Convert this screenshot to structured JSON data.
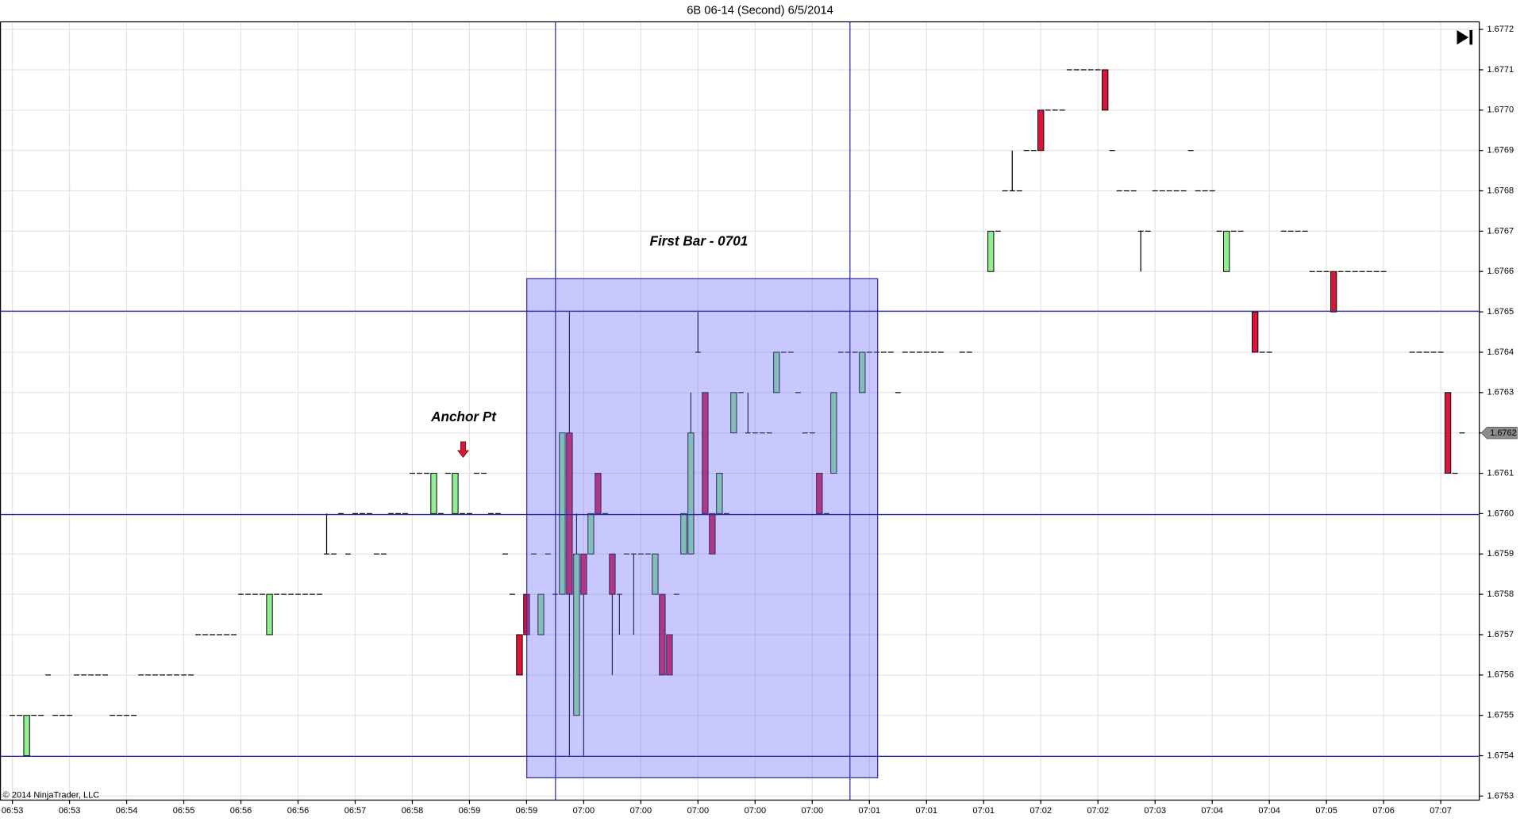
{
  "chart_data": {
    "type": "candlestick",
    "title": "6B 06-14 (Second)  6/5/2014",
    "copyright": "© 2014 NinjaTrader, LLC",
    "annotations": [
      "Anchor Pt",
      "First Bar - 0701"
    ],
    "last_price": 1.6762,
    "up_color": "#90ee90",
    "down_color": "#dc143c",
    "grid": true,
    "ylim": [
      1.67529,
      1.67722
    ],
    "yticks": [
      1.6753,
      1.6754,
      1.6755,
      1.6756,
      1.6757,
      1.6758,
      1.6759,
      {
        "value": 1.676,
        "label": "1.6760"
      },
      1.6761,
      1.6762,
      1.6763,
      1.6764,
      1.6765,
      1.6766,
      1.6767,
      1.6768,
      1.6769,
      {
        "value": 1.677,
        "label": "1.6770"
      },
      1.6771,
      1.6772
    ],
    "xlim": [
      -1.6,
      205.4
    ],
    "xticks": [
      {
        "value": 0,
        "label": "06:53"
      },
      {
        "value": 8,
        "label": "06:53"
      },
      {
        "value": 16,
        "label": "06:54"
      },
      {
        "value": 24,
        "label": "06:55"
      },
      {
        "value": 32,
        "label": "06:56"
      },
      {
        "value": 40,
        "label": "06:56"
      },
      {
        "value": 48,
        "label": "06:57"
      },
      {
        "value": 56,
        "label": "06:58"
      },
      {
        "value": 64,
        "label": "06:59"
      },
      {
        "value": 72,
        "label": "06:59"
      },
      {
        "value": 80,
        "label": "07:00"
      },
      {
        "value": 88,
        "label": "07:00"
      },
      {
        "value": 96,
        "label": "07:00"
      },
      {
        "value": 104,
        "label": "07:00"
      },
      {
        "value": 112,
        "label": "07:00"
      },
      {
        "value": 120,
        "label": "07:01"
      },
      {
        "value": 128,
        "label": "07:01"
      },
      {
        "value": 136,
        "label": "07:01"
      },
      {
        "value": 144,
        "label": "07:02"
      },
      {
        "value": 152,
        "label": "07:02"
      },
      {
        "value": 160,
        "label": "07:03"
      },
      {
        "value": 168,
        "label": "07:04"
      },
      {
        "value": 176,
        "label": "07:04"
      },
      {
        "value": 184,
        "label": "07:05"
      },
      {
        "value": 192,
        "label": "07:06"
      },
      {
        "value": 200,
        "label": "07:07"
      }
    ],
    "candles": [
      [
        1.6755,
        1.6755,
        1.6755,
        1.6755
      ],
      [
        1.6755,
        1.6755,
        1.6755,
        1.6755
      ],
      [
        1.6754,
        1.6755,
        1.6754,
        1.6755
      ],
      [
        1.6755,
        1.6755,
        1.6755,
        1.6755
      ],
      [
        1.6755,
        1.6755,
        1.6755,
        1.6755
      ],
      [
        1.6756,
        1.6756,
        1.6756,
        1.6756
      ],
      [
        1.6755,
        1.6755,
        1.6755,
        1.6755
      ],
      [
        1.6755,
        1.6755,
        1.6755,
        1.6755
      ],
      [
        1.6755,
        1.6755,
        1.6755,
        1.6755
      ],
      [
        1.6756,
        1.6756,
        1.6756,
        1.6756
      ],
      [
        1.6756,
        1.6756,
        1.6756,
        1.6756
      ],
      [
        1.6756,
        1.6756,
        1.6756,
        1.6756
      ],
      [
        1.6756,
        1.6756,
        1.6756,
        1.6756
      ],
      [
        1.6756,
        1.6756,
        1.6756,
        1.6756
      ],
      [
        1.6755,
        1.6755,
        1.6755,
        1.6755
      ],
      [
        1.6755,
        1.6755,
        1.6755,
        1.6755
      ],
      [
        1.6755,
        1.6755,
        1.6755,
        1.6755
      ],
      [
        1.6755,
        1.6755,
        1.6755,
        1.6755
      ],
      [
        1.6756,
        1.6756,
        1.6756,
        1.6756
      ],
      [
        1.6756,
        1.6756,
        1.6756,
        1.6756
      ],
      [
        1.6756,
        1.6756,
        1.6756,
        1.6756
      ],
      [
        1.6756,
        1.6756,
        1.6756,
        1.6756
      ],
      [
        1.6756,
        1.6756,
        1.6756,
        1.6756
      ],
      [
        1.6756,
        1.6756,
        1.6756,
        1.6756
      ],
      [
        1.6756,
        1.6756,
        1.6756,
        1.6756
      ],
      [
        1.6756,
        1.6756,
        1.6756,
        1.6756
      ],
      [
        1.6757,
        1.6757,
        1.6757,
        1.6757
      ],
      [
        1.6757,
        1.6757,
        1.6757,
        1.6757
      ],
      [
        1.6757,
        1.6757,
        1.6757,
        1.6757
      ],
      [
        1.6757,
        1.6757,
        1.6757,
        1.6757
      ],
      [
        1.6757,
        1.6757,
        1.6757,
        1.6757
      ],
      [
        1.6757,
        1.6757,
        1.6757,
        1.6757
      ],
      [
        1.6758,
        1.6758,
        1.6758,
        1.6758
      ],
      [
        1.6758,
        1.6758,
        1.6758,
        1.6758
      ],
      [
        1.6758,
        1.6758,
        1.6758,
        1.6758
      ],
      [
        1.6758,
        1.6758,
        1.6758,
        1.6758
      ],
      [
        1.6757,
        1.6758,
        1.6757,
        1.6758
      ],
      [
        1.6758,
        1.6758,
        1.6758,
        1.6758
      ],
      [
        1.6758,
        1.6758,
        1.6758,
        1.6758
      ],
      [
        1.6758,
        1.6758,
        1.6758,
        1.6758
      ],
      [
        1.6758,
        1.6758,
        1.6758,
        1.6758
      ],
      [
        1.6758,
        1.6758,
        1.6758,
        1.6758
      ],
      [
        1.6758,
        1.6758,
        1.6758,
        1.6758
      ],
      [
        1.6758,
        1.6758,
        1.6758,
        1.6758
      ],
      [
        1.6759,
        1.676,
        1.6759,
        1.6759
      ],
      [
        1.6759,
        1.6759,
        1.6759,
        1.6759
      ],
      [
        1.676,
        1.676,
        1.676,
        1.676
      ],
      [
        1.6759,
        1.6759,
        1.6759,
        1.6759
      ],
      [
        1.676,
        1.676,
        1.676,
        1.676
      ],
      [
        1.676,
        1.676,
        1.676,
        1.676
      ],
      [
        1.676,
        1.676,
        1.676,
        1.676
      ],
      [
        1.6759,
        1.6759,
        1.6759,
        1.6759
      ],
      [
        1.6759,
        1.6759,
        1.6759,
        1.6759
      ],
      [
        1.676,
        1.676,
        1.676,
        1.676
      ],
      [
        1.676,
        1.676,
        1.676,
        1.676
      ],
      [
        1.676,
        1.676,
        1.676,
        1.676
      ],
      [
        1.6761,
        1.6761,
        1.6761,
        1.6761
      ],
      [
        1.6761,
        1.6761,
        1.6761,
        1.6761
      ],
      [
        1.6761,
        1.6761,
        1.6761,
        1.6761
      ],
      [
        1.676,
        1.6761,
        1.676,
        1.6761
      ],
      [
        1.676,
        1.676,
        1.676,
        1.676
      ],
      [
        1.6761,
        1.6761,
        1.6761,
        1.6761
      ],
      [
        1.676,
        1.6761,
        1.676,
        1.6761
      ],
      [
        1.676,
        1.676,
        1.676,
        1.676
      ],
      [
        1.676,
        1.676,
        1.676,
        1.676
      ],
      [
        1.6761,
        1.6761,
        1.6761,
        1.6761
      ],
      [
        1.6761,
        1.6761,
        1.6761,
        1.6761
      ],
      [
        1.676,
        1.676,
        1.676,
        1.676
      ],
      [
        1.676,
        1.676,
        1.676,
        1.676
      ],
      [
        1.6759,
        1.6759,
        1.6759,
        1.6759
      ],
      [
        1.6758,
        1.6758,
        1.6758,
        1.6758
      ],
      [
        1.6757,
        1.6757,
        1.6756,
        1.6756
      ],
      [
        1.6758,
        1.6758,
        1.6757,
        1.6757
      ],
      [
        1.6759,
        1.6759,
        1.6759,
        1.6759
      ],
      [
        1.6757,
        1.6758,
        1.6757,
        1.6758
      ],
      [
        1.6759,
        1.6759,
        1.6759,
        1.6759
      ],
      [
        1.6758,
        1.6758,
        1.6758,
        1.6758
      ],
      [
        1.6758,
        1.6762,
        1.6758,
        1.6762
      ],
      [
        1.6762,
        1.6765,
        1.6754,
        1.6758
      ],
      [
        1.6755,
        1.676,
        1.6755,
        1.6759
      ],
      [
        1.6759,
        1.6759,
        1.6754,
        1.6758
      ],
      [
        1.6759,
        1.676,
        1.6759,
        1.676
      ],
      [
        1.6761,
        1.6761,
        1.676,
        1.676
      ],
      [
        1.676,
        1.676,
        1.676,
        1.676
      ],
      [
        1.6759,
        1.6759,
        1.6756,
        1.6758
      ],
      [
        1.6758,
        1.6758,
        1.6757,
        1.6758
      ],
      [
        1.6759,
        1.6759,
        1.6759,
        1.6759
      ],
      [
        1.6759,
        1.6759,
        1.6757,
        1.6759
      ],
      [
        1.6759,
        1.6759,
        1.6759,
        1.6759
      ],
      [
        1.6759,
        1.6759,
        1.6759,
        1.6759
      ],
      [
        1.6758,
        1.6759,
        1.6758,
        1.6759
      ],
      [
        1.6758,
        1.6758,
        1.6756,
        1.6756
      ],
      [
        1.6757,
        1.6757,
        1.6756,
        1.6756
      ],
      [
        1.6758,
        1.6758,
        1.6758,
        1.6758
      ],
      [
        1.6759,
        1.676,
        1.6759,
        1.676
      ],
      [
        1.6759,
        1.6763,
        1.6759,
        1.6762
      ],
      [
        1.6764,
        1.6765,
        1.6764,
        1.6764
      ],
      [
        1.6763,
        1.6763,
        1.676,
        1.676
      ],
      [
        1.676,
        1.676,
        1.6759,
        1.6759
      ],
      [
        1.676,
        1.6761,
        1.676,
        1.6761
      ],
      [
        1.676,
        1.676,
        1.676,
        1.676
      ],
      [
        1.6762,
        1.6763,
        1.6762,
        1.6763
      ],
      [
        1.6763,
        1.6763,
        1.6763,
        1.6763
      ],
      [
        1.6762,
        1.6763,
        1.6762,
        1.6762
      ],
      [
        1.6762,
        1.6762,
        1.6762,
        1.6762
      ],
      [
        1.6762,
        1.6762,
        1.6762,
        1.6762
      ],
      [
        1.6762,
        1.6762,
        1.6762,
        1.6762
      ],
      [
        1.6763,
        1.6764,
        1.6763,
        1.6764
      ],
      [
        1.6764,
        1.6764,
        1.6764,
        1.6764
      ],
      [
        1.6764,
        1.6764,
        1.6764,
        1.6764
      ],
      [
        1.6763,
        1.6763,
        1.6763,
        1.6763
      ],
      [
        1.6762,
        1.6762,
        1.6762,
        1.6762
      ],
      [
        1.6762,
        1.6762,
        1.6762,
        1.6762
      ],
      [
        1.6761,
        1.6761,
        1.676,
        1.676
      ],
      [
        1.676,
        1.676,
        1.676,
        1.676
      ],
      [
        1.6761,
        1.6763,
        1.6761,
        1.6763
      ],
      [
        1.6764,
        1.6764,
        1.6764,
        1.6764
      ],
      [
        1.6764,
        1.6764,
        1.6764,
        1.6764
      ],
      [
        1.6764,
        1.6764,
        1.6764,
        1.6764
      ],
      [
        1.6763,
        1.6764,
        1.6763,
        1.6764
      ],
      [
        1.6764,
        1.6764,
        1.6764,
        1.6764
      ],
      [
        1.6764,
        1.6764,
        1.6764,
        1.6764
      ],
      [
        1.6764,
        1.6764,
        1.6764,
        1.6764
      ],
      [
        1.6764,
        1.6764,
        1.6764,
        1.6764
      ],
      [
        1.6763,
        1.6763,
        1.6763,
        1.6763
      ],
      [
        1.6764,
        1.6764,
        1.6764,
        1.6764
      ],
      [
        1.6764,
        1.6764,
        1.6764,
        1.6764
      ],
      [
        1.6764,
        1.6764,
        1.6764,
        1.6764
      ],
      [
        1.6764,
        1.6764,
        1.6764,
        1.6764
      ],
      [
        1.6764,
        1.6764,
        1.6764,
        1.6764
      ],
      [
        1.6764,
        1.6764,
        1.6764,
        1.6764
      ],
      null,
      null,
      [
        1.6764,
        1.6764,
        1.6764,
        1.6764
      ],
      [
        1.6764,
        1.6764,
        1.6764,
        1.6764
      ],
      null,
      null,
      [
        1.6766,
        1.6767,
        1.6766,
        1.6767
      ],
      [
        1.6767,
        1.6767,
        1.6767,
        1.6767
      ],
      [
        1.6768,
        1.6768,
        1.6768,
        1.6768
      ],
      [
        1.6768,
        1.6769,
        1.6768,
        1.6768
      ],
      [
        1.6768,
        1.6768,
        1.6768,
        1.6768
      ],
      [
        1.6769,
        1.6769,
        1.6769,
        1.6769
      ],
      [
        1.6769,
        1.6769,
        1.6769,
        1.6769
      ],
      [
        1.677,
        1.677,
        1.6769,
        1.6769
      ],
      [
        1.677,
        1.677,
        1.677,
        1.677
      ],
      [
        1.677,
        1.677,
        1.677,
        1.677
      ],
      [
        1.677,
        1.677,
        1.677,
        1.677
      ],
      [
        1.6771,
        1.6771,
        1.6771,
        1.6771
      ],
      [
        1.6771,
        1.6771,
        1.6771,
        1.6771
      ],
      [
        1.6771,
        1.6771,
        1.6771,
        1.6771
      ],
      [
        1.6771,
        1.6771,
        1.6771,
        1.6771
      ],
      [
        1.6771,
        1.6771,
        1.6771,
        1.6771
      ],
      [
        1.6771,
        1.6771,
        1.677,
        1.677
      ],
      [
        1.6769,
        1.6769,
        1.6769,
        1.6769
      ],
      [
        1.6768,
        1.6768,
        1.6768,
        1.6768
      ],
      [
        1.6768,
        1.6768,
        1.6768,
        1.6768
      ],
      [
        1.6768,
        1.6768,
        1.6768,
        1.6768
      ],
      [
        1.6767,
        1.6767,
        1.6766,
        1.6767
      ],
      [
        1.6767,
        1.6767,
        1.6767,
        1.6767
      ],
      [
        1.6768,
        1.6768,
        1.6768,
        1.6768
      ],
      [
        1.6768,
        1.6768,
        1.6768,
        1.6768
      ],
      [
        1.6768,
        1.6768,
        1.6768,
        1.6768
      ],
      [
        1.6768,
        1.6768,
        1.6768,
        1.6768
      ],
      [
        1.6768,
        1.6768,
        1.6768,
        1.6768
      ],
      [
        1.6769,
        1.6769,
        1.6769,
        1.6769
      ],
      [
        1.6768,
        1.6768,
        1.6768,
        1.6768
      ],
      [
        1.6768,
        1.6768,
        1.6768,
        1.6768
      ],
      [
        1.6768,
        1.6768,
        1.6768,
        1.6768
      ],
      [
        1.6767,
        1.6767,
        1.6767,
        1.6767
      ],
      [
        1.6766,
        1.6767,
        1.6766,
        1.6767
      ],
      [
        1.6767,
        1.6767,
        1.6767,
        1.6767
      ],
      [
        1.6767,
        1.6767,
        1.6767,
        1.6767
      ],
      null,
      [
        1.6765,
        1.6765,
        1.6764,
        1.6764
      ],
      [
        1.6764,
        1.6764,
        1.6764,
        1.6764
      ],
      [
        1.6764,
        1.6764,
        1.6764,
        1.6764
      ],
      null,
      [
        1.6767,
        1.6767,
        1.6767,
        1.6767
      ],
      [
        1.6767,
        1.6767,
        1.6767,
        1.6767
      ],
      [
        1.6767,
        1.6767,
        1.6767,
        1.6767
      ],
      [
        1.6767,
        1.6767,
        1.6767,
        1.6767
      ],
      [
        1.6766,
        1.6766,
        1.6766,
        1.6766
      ],
      [
        1.6766,
        1.6766,
        1.6766,
        1.6766
      ],
      [
        1.6766,
        1.6766,
        1.6766,
        1.6766
      ],
      [
        1.6766,
        1.6766,
        1.6765,
        1.6765
      ],
      [
        1.6766,
        1.6766,
        1.6766,
        1.6766
      ],
      [
        1.6766,
        1.6766,
        1.6766,
        1.6766
      ],
      [
        1.6766,
        1.6766,
        1.6766,
        1.6766
      ],
      [
        1.6766,
        1.6766,
        1.6766,
        1.6766
      ],
      [
        1.6766,
        1.6766,
        1.6766,
        1.6766
      ],
      [
        1.6766,
        1.6766,
        1.6766,
        1.6766
      ],
      [
        1.6766,
        1.6766,
        1.6766,
        1.6766
      ],
      null,
      null,
      null,
      [
        1.6764,
        1.6764,
        1.6764,
        1.6764
      ],
      [
        1.6764,
        1.6764,
        1.6764,
        1.6764
      ],
      [
        1.6764,
        1.6764,
        1.6764,
        1.6764
      ],
      [
        1.6764,
        1.6764,
        1.6764,
        1.6764
      ],
      [
        1.6764,
        1.6764,
        1.6764,
        1.6764
      ],
      [
        1.6763,
        1.6763,
        1.6761,
        1.6761
      ],
      [
        1.6761,
        1.6761,
        1.6761,
        1.6761
      ],
      [
        1.6762,
        1.6762,
        1.6762,
        1.6762
      ]
    ]
  }
}
